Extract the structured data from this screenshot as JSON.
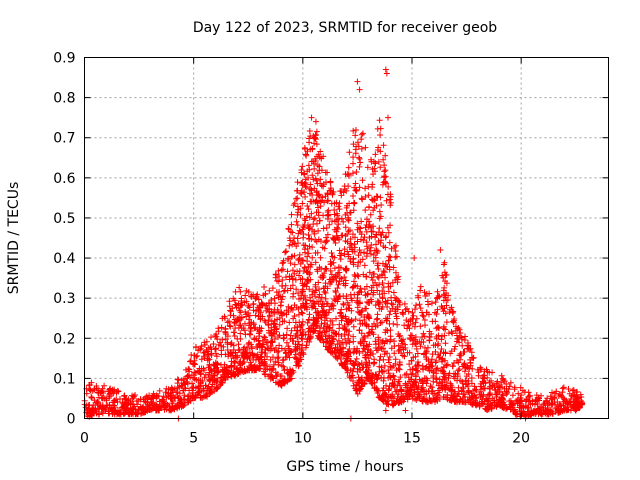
{
  "chart_data": {
    "type": "scatter",
    "title": "Day 122 of 2023, SRMTID for receiver geob",
    "xlabel": "GPS time / hours",
    "ylabel": "SRMTID / TECUs",
    "xlim": [
      0,
      24
    ],
    "ylim": [
      0,
      0.9
    ],
    "xticks": [
      0,
      5,
      10,
      15,
      20
    ],
    "xtick_labels": [
      "0",
      "5",
      "10",
      "15",
      "20"
    ],
    "yticks": [
      0,
      0.1,
      0.2,
      0.3,
      0.4,
      0.5,
      0.6,
      0.7,
      0.8,
      0.9
    ],
    "ytick_labels": [
      "0",
      "0.1",
      "0.2",
      "0.3",
      "0.4",
      "0.5",
      "0.6",
      "0.7",
      "0.8",
      "0.9"
    ],
    "grid": true,
    "marker": "+",
    "marker_color": "#ff0000",
    "series": [
      {
        "name": "SRMTID",
        "envelope": [
          [
            0.0,
            0.0,
            0.09
          ],
          [
            0.5,
            0.01,
            0.09
          ],
          [
            1.0,
            0.01,
            0.08
          ],
          [
            1.5,
            0.01,
            0.07
          ],
          [
            2.0,
            0.01,
            0.06
          ],
          [
            2.5,
            0.01,
            0.06
          ],
          [
            3.0,
            0.02,
            0.06
          ],
          [
            3.5,
            0.02,
            0.07
          ],
          [
            4.0,
            0.02,
            0.08
          ],
          [
            4.5,
            0.03,
            0.12
          ],
          [
            5.0,
            0.05,
            0.18
          ],
          [
            5.5,
            0.05,
            0.2
          ],
          [
            6.0,
            0.07,
            0.22
          ],
          [
            6.5,
            0.1,
            0.28
          ],
          [
            7.0,
            0.11,
            0.33
          ],
          [
            7.5,
            0.12,
            0.32
          ],
          [
            8.0,
            0.12,
            0.32
          ],
          [
            8.5,
            0.1,
            0.34
          ],
          [
            9.0,
            0.08,
            0.38
          ],
          [
            9.5,
            0.1,
            0.52
          ],
          [
            10.0,
            0.15,
            0.66
          ],
          [
            10.5,
            0.22,
            0.76
          ],
          [
            11.0,
            0.18,
            0.64
          ],
          [
            11.5,
            0.15,
            0.55
          ],
          [
            12.0,
            0.12,
            0.62
          ],
          [
            12.5,
            0.06,
            0.8
          ],
          [
            13.0,
            0.1,
            0.63
          ],
          [
            13.5,
            0.05,
            0.75
          ],
          [
            14.0,
            0.03,
            0.58
          ],
          [
            14.5,
            0.04,
            0.3
          ],
          [
            15.0,
            0.05,
            0.26
          ],
          [
            15.5,
            0.04,
            0.36
          ],
          [
            16.0,
            0.04,
            0.28
          ],
          [
            16.5,
            0.05,
            0.4
          ],
          [
            17.0,
            0.04,
            0.24
          ],
          [
            17.5,
            0.04,
            0.2
          ],
          [
            18.0,
            0.03,
            0.14
          ],
          [
            18.5,
            0.02,
            0.12
          ],
          [
            19.0,
            0.03,
            0.11
          ],
          [
            19.5,
            0.02,
            0.1
          ],
          [
            20.0,
            0.0,
            0.08
          ],
          [
            20.5,
            0.01,
            0.06
          ],
          [
            21.0,
            0.01,
            0.06
          ],
          [
            21.5,
            0.01,
            0.07
          ],
          [
            22.0,
            0.02,
            0.08
          ],
          [
            22.5,
            0.02,
            0.07
          ],
          [
            22.8,
            0.03,
            0.06
          ]
        ],
        "outliers": [
          [
            4.3,
            0.0
          ],
          [
            12.2,
            0.0
          ],
          [
            20.2,
            0.0
          ],
          [
            12.5,
            0.84
          ],
          [
            12.6,
            0.82
          ],
          [
            13.8,
            0.87
          ],
          [
            13.85,
            0.86
          ],
          [
            13.9,
            0.75
          ],
          [
            10.4,
            0.75
          ],
          [
            10.6,
            0.74
          ],
          [
            15.1,
            0.4
          ],
          [
            16.3,
            0.42
          ],
          [
            14.7,
            0.02
          ],
          [
            13.8,
            0.02
          ]
        ]
      }
    ]
  }
}
